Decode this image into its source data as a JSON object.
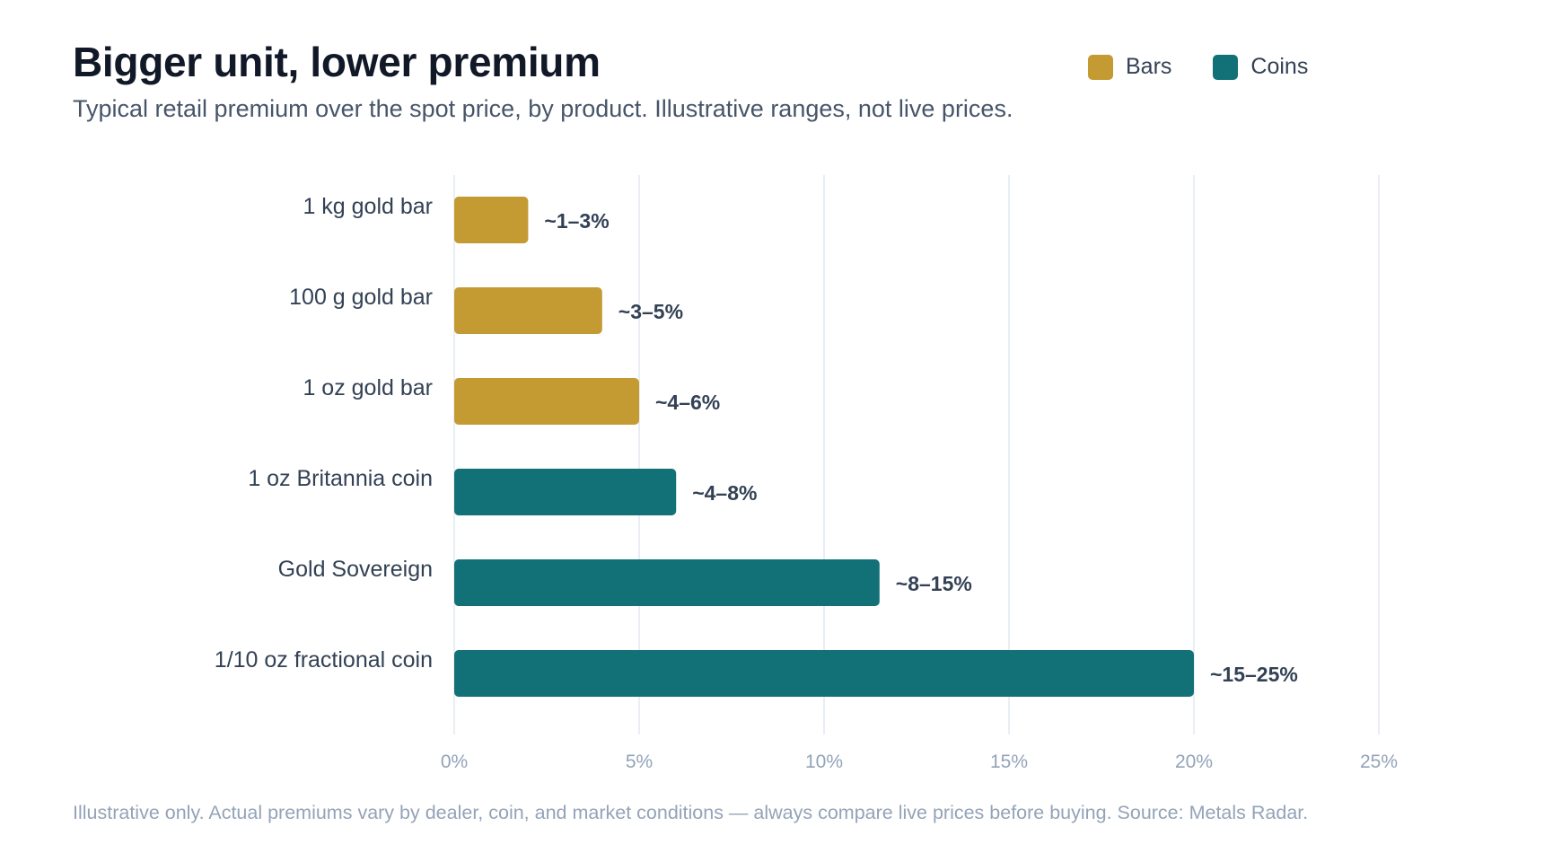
{
  "title": "Bigger unit, lower premium",
  "subtitle": "Typical retail premium over the spot price, by product. Illustrative ranges, not live prices.",
  "footer": "Illustrative only. Actual premiums vary by dealer, coin, and market conditions — always compare live prices before buying. Source: Metals Radar.",
  "legend": [
    {
      "label": "Bars",
      "color": "#c49a33"
    },
    {
      "label": "Coins",
      "color": "#127077"
    }
  ],
  "chart_data": {
    "type": "bar",
    "orientation": "horizontal",
    "title": "Bigger unit, lower premium",
    "subtitle": "Typical retail premium over the spot price, by product. Illustrative ranges, not live prices.",
    "categories": [
      "1 kg gold bar",
      "100 g gold bar",
      "1 oz gold bar",
      "1 oz Britannia coin",
      "Gold Sovereign",
      "1/10 oz fractional coin"
    ],
    "values": [
      2,
      4,
      5,
      6,
      11.5,
      20
    ],
    "groups": [
      "Bars",
      "Bars",
      "Bars",
      "Coins",
      "Coins",
      "Coins"
    ],
    "data_labels": [
      "~1–3%",
      "~3–5%",
      "~4–6%",
      "~4–8%",
      "~8–15%",
      "~15–25%"
    ],
    "xlim": [
      0,
      25
    ],
    "x_ticks": [
      0,
      5,
      10,
      15,
      20,
      25
    ],
    "x_tick_labels": [
      "0%",
      "5%",
      "10%",
      "15%",
      "20%",
      "25%"
    ],
    "xlabel": "",
    "ylabel": "",
    "grid": "vertical",
    "legend_position": "top-right",
    "colors": {
      "Bars": "#c49a33",
      "Coins": "#127077"
    }
  }
}
